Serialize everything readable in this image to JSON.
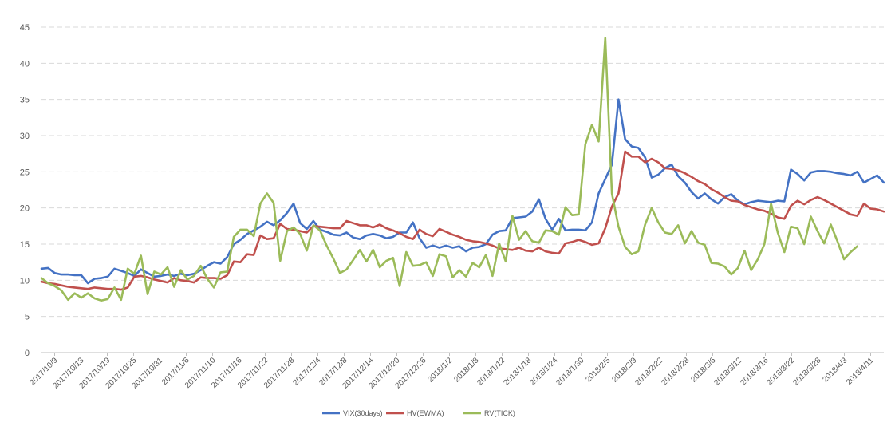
{
  "chart_data": {
    "type": "line",
    "ylim": [
      0,
      45
    ],
    "yticks": [
      0,
      5,
      10,
      15,
      20,
      25,
      30,
      35,
      40,
      45
    ],
    "grid": true,
    "legend_position": "bottom",
    "x_tick_labels": [
      "2017/10/9",
      "2017/10/13",
      "2017/10/19",
      "2017/10/25",
      "2017/10/31",
      "2017/11/6",
      "2017/11/10",
      "2017/11/16",
      "2017/11/22",
      "2017/11/28",
      "2017/12/4",
      "2017/12/8",
      "2017/12/14",
      "2017/12/20",
      "2017/12/26",
      "2018/1/2",
      "2018/1/8",
      "2018/1/12",
      "2018/1/18",
      "2018/1/24",
      "2018/1/30",
      "2018/2/5",
      "2018/2/9",
      "2018/2/22",
      "2018/2/28",
      "2018/3/6",
      "2018/3/12",
      "2018/3/16",
      "2018/3/22",
      "2018/3/28",
      "2018/4/3",
      "2018/4/11"
    ],
    "series": [
      {
        "name": "VIX(30days)",
        "color": "#4472c4",
        "values": [
          11.6,
          11.7,
          11.0,
          10.8,
          10.8,
          10.7,
          10.7,
          9.6,
          10.2,
          10.3,
          10.5,
          11.6,
          11.3,
          11.0,
          10.6,
          11.5,
          11.0,
          10.5,
          10.6,
          10.8,
          10.6,
          10.9,
          10.7,
          10.9,
          11.4,
          12.0,
          12.5,
          12.3,
          13.2,
          15.0,
          15.6,
          16.4,
          16.9,
          17.4,
          18.1,
          17.6,
          18.3,
          19.3,
          20.6,
          17.9,
          17.1,
          18.2,
          17.0,
          16.7,
          16.3,
          16.2,
          16.6,
          15.9,
          15.7,
          16.2,
          16.4,
          16.2,
          15.8,
          16.0,
          16.6,
          16.6,
          18.0,
          15.8,
          14.5,
          14.8,
          14.5,
          14.8,
          14.5,
          14.7,
          14.0,
          14.5,
          14.6,
          15.0,
          16.3,
          16.8,
          16.9,
          18.6,
          18.7,
          18.8,
          19.5,
          21.2,
          18.5,
          17.0,
          18.5,
          16.9,
          17.0,
          17.0,
          16.9,
          18.0,
          22.0,
          24.0,
          26.0,
          35.0,
          29.5,
          28.5,
          28.3,
          27.0,
          24.2,
          24.6,
          25.5,
          26.0,
          24.4,
          23.5,
          22.2,
          21.3,
          22.0,
          21.2,
          20.6,
          21.5,
          21.9,
          21.0,
          20.5,
          20.8,
          21.0,
          20.9,
          20.8,
          21.0,
          20.9,
          25.3,
          24.7,
          23.8,
          24.9,
          25.1,
          25.1,
          25.0,
          24.8,
          24.7,
          24.5,
          25.0,
          23.5,
          24.0,
          24.5,
          23.5
        ]
      },
      {
        "name": "HV(EWMA)",
        "color": "#c0504d",
        "values": [
          9.8,
          9.6,
          9.5,
          9.3,
          9.1,
          9.0,
          8.9,
          8.8,
          9.0,
          8.9,
          8.8,
          8.8,
          8.7,
          9.0,
          10.5,
          10.6,
          10.4,
          10.1,
          9.9,
          9.7,
          10.3,
          10.0,
          9.9,
          9.7,
          10.4,
          10.3,
          10.3,
          10.2,
          10.7,
          12.6,
          12.5,
          13.6,
          13.5,
          16.2,
          15.7,
          15.8,
          17.8,
          17.1,
          17.0,
          16.8,
          16.6,
          17.5,
          17.4,
          17.3,
          17.2,
          17.2,
          18.2,
          17.9,
          17.6,
          17.6,
          17.3,
          17.7,
          17.2,
          16.9,
          16.5,
          16.0,
          15.7,
          17.0,
          16.4,
          16.1,
          17.1,
          16.7,
          16.3,
          16.0,
          15.6,
          15.4,
          15.3,
          15.1,
          14.8,
          14.4,
          14.3,
          14.2,
          14.5,
          14.1,
          14.0,
          14.5,
          14.0,
          13.8,
          13.7,
          15.1,
          15.3,
          15.6,
          15.3,
          14.9,
          15.1,
          17.2,
          20.2,
          22.0,
          27.8,
          27.1,
          27.1,
          26.3,
          26.8,
          26.3,
          25.5,
          25.4,
          25.2,
          24.8,
          24.3,
          23.7,
          23.3,
          22.6,
          22.1,
          21.5,
          21.0,
          20.9,
          20.4,
          20.1,
          19.8,
          19.6,
          19.2,
          18.7,
          18.5,
          20.3,
          21.0,
          20.5,
          21.1,
          21.5,
          21.1,
          20.6,
          20.1,
          19.6,
          19.1,
          18.9,
          20.6,
          19.9,
          19.8,
          19.5
        ]
      },
      {
        "name": "RV(TICK)",
        "color": "#9bbb59",
        "values": [
          10.3,
          9.6,
          9.2,
          8.6,
          7.3,
          8.2,
          7.6,
          8.2,
          7.5,
          7.2,
          7.4,
          9.0,
          7.3,
          11.6,
          10.9,
          13.4,
          8.1,
          11.2,
          10.8,
          11.8,
          9.1,
          11.4,
          10.1,
          10.6,
          12.0,
          10.2,
          9.0,
          11.1,
          11.2,
          16.0,
          17.0,
          17.0,
          16.1,
          20.6,
          22.0,
          20.7,
          12.7,
          16.8,
          17.3,
          16.4,
          14.1,
          17.6,
          16.9,
          14.8,
          13.0,
          11.0,
          11.5,
          12.8,
          14.2,
          12.6,
          14.2,
          11.8,
          12.7,
          13.1,
          9.2,
          13.9,
          12.0,
          12.1,
          12.5,
          10.6,
          13.6,
          13.3,
          10.4,
          11.4,
          10.5,
          12.4,
          11.8,
          13.5,
          10.6,
          15.1,
          12.6,
          18.9,
          15.6,
          16.8,
          15.4,
          15.2,
          16.9,
          16.8,
          16.3,
          20.1,
          19.0,
          19.1,
          28.8,
          31.5,
          29.2,
          43.5,
          22.0,
          17.4,
          14.6,
          13.6,
          14.0,
          17.7,
          20.0,
          18.0,
          16.6,
          16.4,
          17.6,
          15.1,
          16.8,
          15.2,
          14.9,
          12.4,
          12.3,
          11.9,
          10.8,
          11.7,
          14.1,
          11.4,
          12.9,
          15.0,
          20.6,
          16.6,
          13.9,
          17.4,
          17.2,
          15.0,
          18.8,
          16.8,
          15.1,
          17.7,
          15.4,
          12.9,
          13.9,
          14.7
        ]
      }
    ]
  }
}
